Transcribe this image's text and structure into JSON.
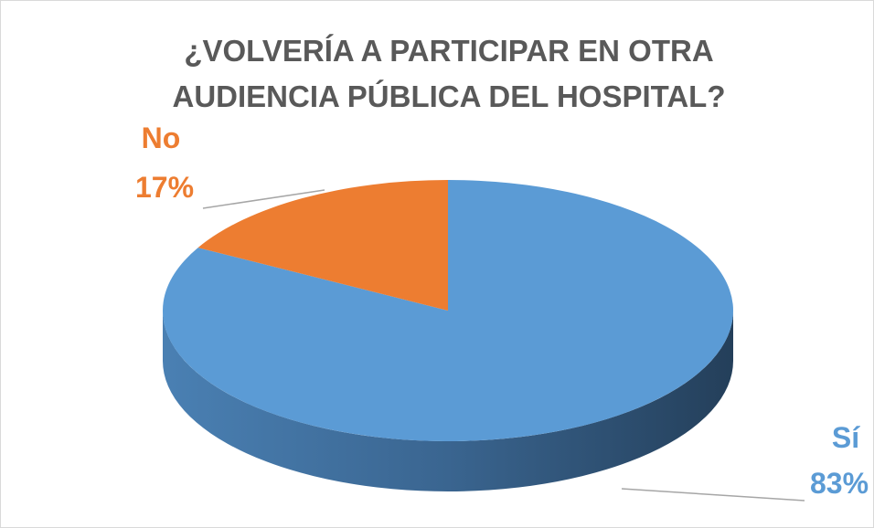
{
  "chart_data": {
    "type": "pie",
    "title": "¿VOLVERÍA A PARTICIPAR EN OTRA AUDIENCIA PÚBLICA DEL HOSPITAL?",
    "categories": [
      "Sí",
      "No"
    ],
    "values": [
      83,
      17
    ],
    "value_labels": [
      "83%",
      "17%"
    ],
    "colors": [
      "#5b9bd5",
      "#ed7d31"
    ]
  }
}
